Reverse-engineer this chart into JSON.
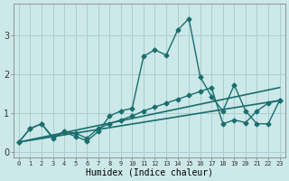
{
  "xlabel": "Humidex (Indice chaleur)",
  "ylabel": "",
  "xlim": [
    -0.5,
    23.5
  ],
  "ylim": [
    -0.15,
    3.8
  ],
  "bg_color": "#cce8e8",
  "grid_color": "#aacece",
  "line_color": "#1a6e6e",
  "x_ticks": [
    0,
    1,
    2,
    3,
    4,
    5,
    6,
    7,
    8,
    9,
    10,
    11,
    12,
    13,
    14,
    15,
    16,
    17,
    18,
    19,
    20,
    21,
    22,
    23
  ],
  "y_ticks": [
    0,
    1,
    2,
    3
  ],
  "lines": [
    {
      "x": [
        0,
        1,
        2,
        3,
        4,
        5,
        6,
        7,
        8,
        9,
        10,
        11,
        12,
        13,
        14,
        15,
        16,
        17,
        18,
        19,
        20,
        21,
        22,
        23
      ],
      "y": [
        0.25,
        0.6,
        0.72,
        0.35,
        0.5,
        0.4,
        0.28,
        0.52,
        0.92,
        1.05,
        1.12,
        2.45,
        2.62,
        2.48,
        3.12,
        3.42,
        1.92,
        1.42,
        1.05,
        1.72,
        1.05,
        0.72,
        0.72,
        1.32
      ],
      "marker": "D",
      "markersize": 2.5,
      "linewidth": 1.0
    },
    {
      "x": [
        0,
        1,
        2,
        3,
        4,
        5,
        6,
        7,
        8,
        9,
        10,
        11,
        12,
        13,
        14,
        15,
        16,
        17,
        18,
        19,
        20,
        21,
        22,
        23
      ],
      "y": [
        0.25,
        0.6,
        0.72,
        0.38,
        0.52,
        0.48,
        0.35,
        0.6,
        0.72,
        0.82,
        0.92,
        1.05,
        1.15,
        1.25,
        1.35,
        1.45,
        1.55,
        1.65,
        0.72,
        0.82,
        0.75,
        1.05,
        1.25,
        1.32
      ],
      "marker": "D",
      "markersize": 2.5,
      "linewidth": 1.0
    },
    {
      "x": [
        0,
        23
      ],
      "y": [
        0.25,
        1.32
      ],
      "marker": null,
      "markersize": 0,
      "linewidth": 1.2
    },
    {
      "x": [
        0,
        23
      ],
      "y": [
        0.25,
        1.65
      ],
      "marker": null,
      "markersize": 0,
      "linewidth": 1.2
    }
  ]
}
